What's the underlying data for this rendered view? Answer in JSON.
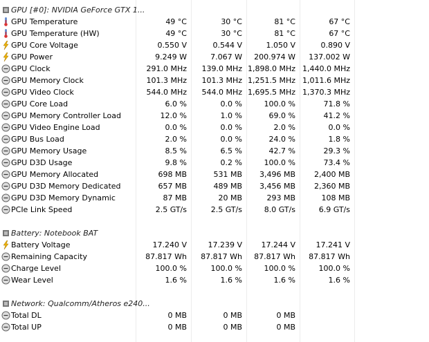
{
  "sections": [
    {
      "title": "GPU [#0]: NVIDIA GeForce GTX 1...",
      "rows": [
        {
          "label": "GPU Temperature",
          "icon": "temp",
          "values": [
            "49 °C",
            "30 °C",
            "81 °C",
            "67 °C"
          ]
        },
        {
          "label": "GPU Temperature (HW)",
          "icon": "temp",
          "values": [
            "49 °C",
            "30 °C",
            "81 °C",
            "67 °C"
          ]
        },
        {
          "label": "GPU Core Voltage",
          "icon": "power",
          "values": [
            "0.550 V",
            "0.544 V",
            "1.050 V",
            "0.890 V"
          ]
        },
        {
          "label": "GPU Power",
          "icon": "power",
          "values": [
            "9.249 W",
            "7.067 W",
            "200.974 W",
            "137.002 W"
          ]
        },
        {
          "label": "GPU Clock",
          "icon": "gauge",
          "values": [
            "291.0 MHz",
            "139.0 MHz",
            "1,898.0 MHz",
            "1,440.0 MHz"
          ]
        },
        {
          "label": "GPU Memory Clock",
          "icon": "gauge",
          "values": [
            "101.3 MHz",
            "101.3 MHz",
            "1,251.5 MHz",
            "1,011.6 MHz"
          ]
        },
        {
          "label": "GPU Video Clock",
          "icon": "gauge",
          "values": [
            "544.0 MHz",
            "544.0 MHz",
            "1,695.5 MHz",
            "1,370.3 MHz"
          ]
        },
        {
          "label": "GPU Core Load",
          "icon": "gauge",
          "values": [
            "6.0 %",
            "0.0 %",
            "100.0 %",
            "71.8 %"
          ]
        },
        {
          "label": "GPU Memory Controller Load",
          "icon": "gauge",
          "values": [
            "12.0 %",
            "1.0 %",
            "69.0 %",
            "41.2 %"
          ]
        },
        {
          "label": "GPU Video Engine Load",
          "icon": "gauge",
          "values": [
            "0.0 %",
            "0.0 %",
            "2.0 %",
            "0.0 %"
          ]
        },
        {
          "label": "GPU Bus Load",
          "icon": "gauge",
          "values": [
            "2.0 %",
            "0.0 %",
            "24.0 %",
            "1.8 %"
          ]
        },
        {
          "label": "GPU Memory Usage",
          "icon": "gauge",
          "values": [
            "8.5 %",
            "6.5 %",
            "42.7 %",
            "29.3 %"
          ]
        },
        {
          "label": "GPU D3D Usage",
          "icon": "gauge",
          "values": [
            "9.8 %",
            "0.2 %",
            "100.0 %",
            "73.4 %"
          ]
        },
        {
          "label": "GPU Memory Allocated",
          "icon": "gauge",
          "values": [
            "698 MB",
            "531 MB",
            "3,496 MB",
            "2,400 MB"
          ]
        },
        {
          "label": "GPU D3D Memory Dedicated",
          "icon": "gauge",
          "values": [
            "657 MB",
            "489 MB",
            "3,456 MB",
            "2,360 MB"
          ]
        },
        {
          "label": "GPU D3D Memory Dynamic",
          "icon": "gauge",
          "values": [
            "87 MB",
            "20 MB",
            "293 MB",
            "108 MB"
          ]
        },
        {
          "label": "PCIe Link Speed",
          "icon": "gauge",
          "values": [
            "2.5 GT/s",
            "2.5 GT/s",
            "8.0 GT/s",
            "6.9 GT/s"
          ]
        }
      ]
    },
    {
      "title": "Battery: Notebook BAT",
      "rows": [
        {
          "label": "Battery Voltage",
          "icon": "power",
          "values": [
            "17.240 V",
            "17.239 V",
            "17.244 V",
            "17.241 V"
          ]
        },
        {
          "label": "Remaining Capacity",
          "icon": "gauge",
          "values": [
            "87.817 Wh",
            "87.817 Wh",
            "87.817 Wh",
            "87.817 Wh"
          ]
        },
        {
          "label": "Charge Level",
          "icon": "gauge",
          "values": [
            "100.0 %",
            "100.0 %",
            "100.0 %",
            "100.0 %"
          ]
        },
        {
          "label": "Wear Level",
          "icon": "gauge",
          "values": [
            "1.6 %",
            "1.6 %",
            "1.6 %",
            "1.6 %"
          ]
        }
      ]
    },
    {
      "title": "Network: Qualcomm/Atheros e240...",
      "rows": [
        {
          "label": "Total DL",
          "icon": "gauge",
          "values": [
            "0 MB",
            "0 MB",
            "0 MB"
          ]
        },
        {
          "label": "Total UP",
          "icon": "gauge",
          "values": [
            "0 MB",
            "0 MB",
            "0 MB"
          ]
        }
      ]
    }
  ]
}
